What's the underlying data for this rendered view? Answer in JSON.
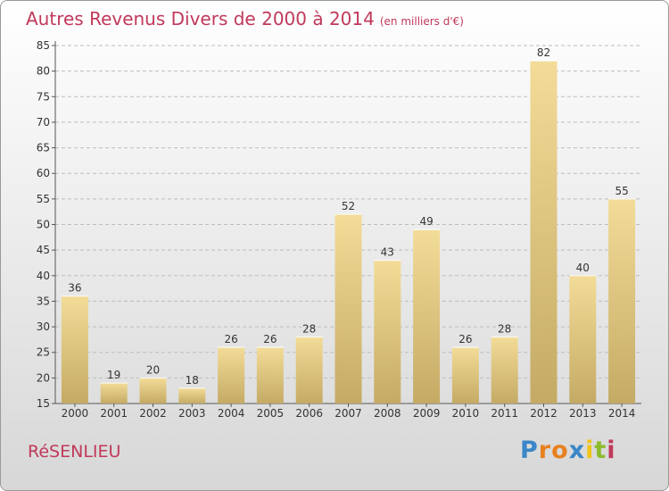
{
  "title": "Autres Revenus Divers de 2000 à 2014",
  "subtitle": "(en milliers d'€)",
  "commune": "RéSENLIEU",
  "logo": {
    "text": "Proxiti",
    "colors": [
      "#3a86c8",
      "#e8801e",
      "#e8801e",
      "#3a86c8",
      "#f0c419",
      "#8dbb2c",
      "#c0395a"
    ]
  },
  "colors": {
    "title": "#c0395a",
    "bar_light": "#f3dc98",
    "bar_dark": "#c4aa65",
    "axis": "#555555"
  },
  "chart_data": {
    "type": "bar",
    "categories": [
      "2000",
      "2001",
      "2002",
      "2003",
      "2004",
      "2005",
      "2006",
      "2007",
      "2008",
      "2009",
      "2010",
      "2011",
      "2012",
      "2013",
      "2014"
    ],
    "values": [
      36,
      19,
      20,
      18,
      26,
      26,
      28,
      52,
      43,
      49,
      26,
      28,
      82,
      40,
      55
    ],
    "yticks": [
      15,
      20,
      25,
      30,
      35,
      40,
      45,
      50,
      55,
      60,
      65,
      70,
      75,
      80,
      85
    ],
    "ylim": [
      15,
      85
    ],
    "grid": true,
    "data_labels": true
  }
}
